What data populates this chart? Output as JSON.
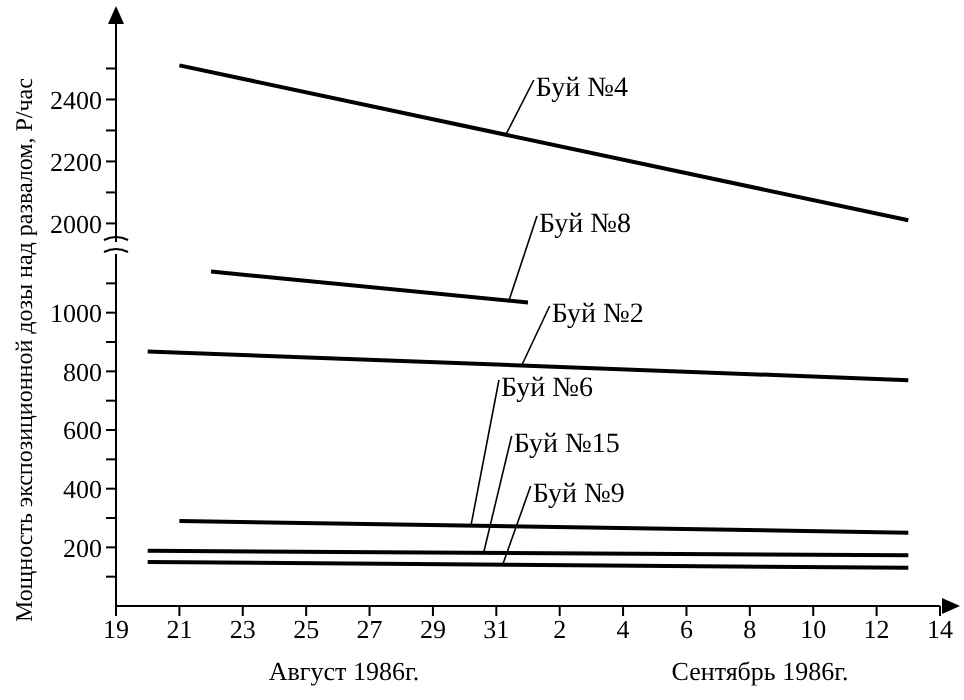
{
  "chart_data": [
    {
      "type": "line",
      "marker": "none",
      "line_style": "solid",
      "tick_labels": "y",
      "xlim": [
        "1986-08-19",
        "1986-09-14"
      ],
      "ylim": [
        1940,
        2650
      ],
      "yticks": [
        2000,
        {
          "value": 2100,
          "label": null
        },
        2200,
        {
          "value": 2300,
          "label": null
        },
        2400,
        {
          "value": 2500,
          "label": null
        }
      ],
      "x": [
        "1986-08-21",
        "1986-09-13"
      ],
      "series": [
        {
          "name": "Буй №4",
          "color": "#000000",
          "values": [
            2510,
            2010
          ]
        }
      ]
    },
    {
      "type": "line",
      "marker": "none",
      "line_style": "solid",
      "ylabel": "Мощность экспозиционной дозы над развалом, Р/час",
      "annotations": [
        "Август 1986г.",
        "Сентябрь 1986г."
      ],
      "xlim": [
        "1986-08-19",
        "1986-09-14"
      ],
      "xticks": [
        {
          "value": "1986-08-19",
          "label": "19"
        },
        {
          "value": "1986-08-21",
          "label": "21"
        },
        {
          "value": "1986-08-23",
          "label": "23"
        },
        {
          "value": "1986-08-25",
          "label": "25"
        },
        {
          "value": "1986-08-27",
          "label": "27"
        },
        {
          "value": "1986-08-29",
          "label": "29"
        },
        {
          "value": "1986-08-31",
          "label": "31"
        },
        {
          "value": "1986-09-02",
          "label": "2"
        },
        {
          "value": "1986-09-04",
          "label": "4"
        },
        {
          "value": "1986-09-06",
          "label": "6"
        },
        {
          "value": "1986-09-08",
          "label": "8"
        },
        {
          "value": "1986-09-10",
          "label": "10"
        },
        {
          "value": "1986-09-12",
          "label": "12"
        },
        {
          "value": "1986-09-14",
          "label": "14"
        }
      ],
      "ylim": [
        0,
        1200
      ],
      "yticks": [
        {
          "value": 100,
          "label": null
        },
        200,
        {
          "value": 300,
          "label": null
        },
        400,
        {
          "value": 500,
          "label": null
        },
        600,
        {
          "value": 700,
          "label": null
        },
        800,
        {
          "value": 900,
          "label": null
        },
        1000,
        {
          "value": 1100,
          "label": null
        }
      ],
      "series": [
        {
          "name": "Буй №8",
          "color": "#000000",
          "x": [
            "1986-08-22",
            "1986-09-01"
          ],
          "values": [
            1140,
            1035
          ]
        },
        {
          "name": "Буй №2",
          "color": "#000000",
          "x": [
            "1986-08-20",
            "1986-09-13"
          ],
          "values": [
            868,
            770
          ]
        },
        {
          "name": "Буй №6",
          "color": "#000000",
          "x": [
            "1986-08-21",
            "1986-09-13"
          ],
          "values": [
            290,
            250
          ]
        },
        {
          "name": "Буй №15",
          "color": "#000000",
          "x": [
            "1986-08-20",
            "1986-09-13"
          ],
          "values": [
            188,
            173
          ]
        },
        {
          "name": "Буй №9",
          "color": "#000000",
          "x": [
            "1986-08-20",
            "1986-09-13"
          ],
          "values": [
            150,
            130
          ]
        }
      ]
    }
  ]
}
